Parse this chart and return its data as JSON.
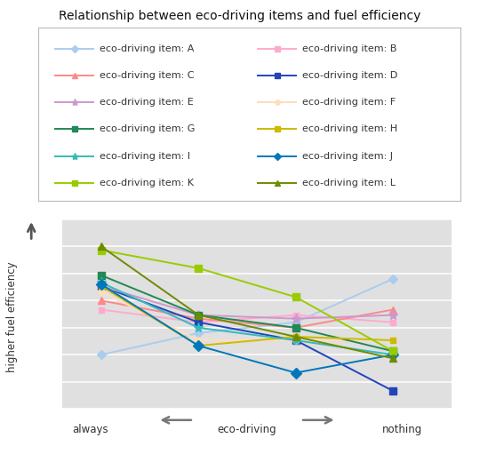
{
  "title": "Relationship between eco-driving items and fuel efficiency",
  "series": [
    {
      "label": "eco-driving item: A",
      "color": "#aaccee",
      "marker": "D",
      "markersize": 5,
      "values": [
        4.0,
        5.2,
        5.8,
        8.2
      ]
    },
    {
      "label": "eco-driving item: B",
      "color": "#ffaacc",
      "marker": "s",
      "markersize": 5,
      "values": [
        6.5,
        5.8,
        6.2,
        5.8
      ]
    },
    {
      "label": "eco-driving item: C",
      "color": "#ff8888",
      "marker": "^",
      "markersize": 6,
      "values": [
        7.0,
        6.0,
        5.5,
        6.5
      ]
    },
    {
      "label": "eco-driving item: D",
      "color": "#2244bb",
      "marker": "s",
      "markersize": 6,
      "values": [
        7.8,
        5.8,
        4.8,
        2.0
      ]
    },
    {
      "label": "eco-driving item: E",
      "color": "#cc99cc",
      "marker": "*",
      "markersize": 8,
      "values": [
        7.8,
        6.2,
        6.0,
        6.2
      ]
    },
    {
      "label": "eco-driving item: F",
      "color": "#ffddbb",
      "marker": "o",
      "markersize": 5,
      "values": [
        7.5,
        4.8,
        4.8,
        4.8
      ]
    },
    {
      "label": "eco-driving item: G",
      "color": "#228855",
      "marker": "s",
      "markersize": 6,
      "values": [
        8.4,
        6.2,
        5.5,
        4.2
      ]
    },
    {
      "label": "eco-driving item: H",
      "color": "#ccbb00",
      "marker": "s",
      "markersize": 5,
      "values": [
        7.8,
        4.5,
        5.0,
        4.8
      ]
    },
    {
      "label": "eco-driving item: I",
      "color": "#33bbbb",
      "marker": "*",
      "markersize": 8,
      "values": [
        8.0,
        5.5,
        4.8,
        4.0
      ]
    },
    {
      "label": "eco-driving item: J",
      "color": "#0077bb",
      "marker": "D",
      "markersize": 6,
      "values": [
        7.9,
        4.5,
        3.0,
        4.0
      ]
    },
    {
      "label": "eco-driving item: K",
      "color": "#99cc00",
      "marker": "s",
      "markersize": 6,
      "values": [
        9.8,
        8.8,
        7.2,
        4.2
      ]
    },
    {
      "label": "eco-driving item: L",
      "color": "#6e8c00",
      "marker": "^",
      "markersize": 6,
      "values": [
        10.0,
        6.2,
        5.0,
        3.8
      ]
    }
  ],
  "x_positions": [
    1,
    2,
    3,
    4
  ],
  "ylim": [
    1.0,
    11.5
  ],
  "xlim": [
    0.6,
    4.6
  ],
  "plot_bg": "#e0e0e0",
  "grid_color": "#ffffff",
  "arrow_color": "#777777",
  "y_arrow_color": "#555555",
  "legend_fontsize": 8.0,
  "title_fontsize": 10.0
}
